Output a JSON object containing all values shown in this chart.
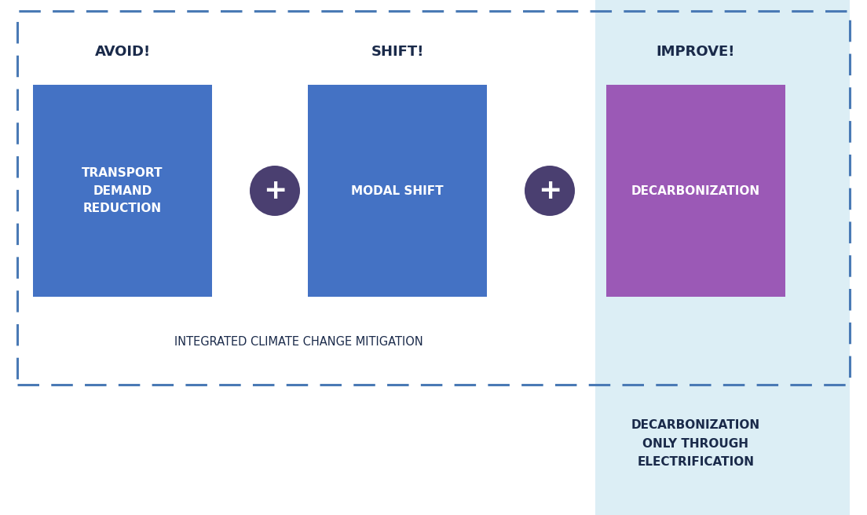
{
  "bg_color": "#ffffff",
  "outer_border_color": "#4a7ab5",
  "light_blue_bg": "#dceef5",
  "blue_box_color": "#4472c4",
  "purple_box_color": "#9b59b6",
  "circle_color": "#4a3f70",
  "white_text": "#ffffff",
  "dark_text": "#1a2a4a",
  "mid_text": "#1a2a4a",
  "label_avoid": "AVOID!",
  "label_shift": "SHIFT!",
  "label_improve": "IMPROVE!",
  "text_transport": "TRANSPORT\nDEMAND\nREDUCTION",
  "text_modal": "MODAL SHIFT",
  "text_decarb": "DECARBONIZATION",
  "text_integrated": "INTEGRATED CLIMATE CHANGE MITIGATION",
  "text_decarb_only": "DECARBONIZATION\nONLY THROUGH\nELECTRIFICATION",
  "plus_symbol": "+"
}
